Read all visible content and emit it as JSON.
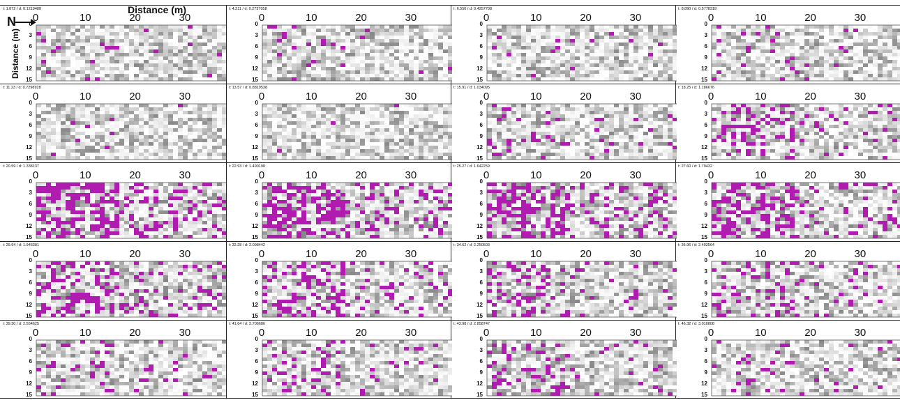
{
  "figure": {
    "x_axis_title": "Distance (m)",
    "y_axis_title": "Distance (m)",
    "north_label": "N",
    "x_ticks": [
      "0",
      "10",
      "20",
      "30"
    ],
    "y_ticks": [
      "0",
      "3",
      "6",
      "9",
      "12",
      "15"
    ],
    "colors": {
      "grey_scale": "#808080",
      "anomaly": "#b01cb0",
      "background": "#ffffff"
    }
  },
  "chart_data": {
    "type": "heatmap",
    "title": "",
    "xlabel": "Distance (m)",
    "ylabel": "Distance (m)",
    "xlim": [
      0,
      39
    ],
    "ylim": [
      0,
      15
    ],
    "grid": false,
    "panel_count": 20,
    "panels": [
      {
        "label": "t: 1.872 / d: 0.1219488",
        "anomaly_level": 0.02
      },
      {
        "label": "t: 4.211 / d: 0.2737058",
        "anomaly_level": 0.02
      },
      {
        "label": "t: 6.550 / d: 0.4257708",
        "anomaly_level": 0.02
      },
      {
        "label": "t: 8.890 / d: 0.5778318",
        "anomaly_level": 0.03
      },
      {
        "label": "t: 11.23 / d: 0.7298928",
        "anomaly_level": 0.01
      },
      {
        "label": "t: 13.57 / d: 0.8819538",
        "anomaly_level": 0.01
      },
      {
        "label": "t: 15.91 / d: 1.034095",
        "anomaly_level": 0.06
      },
      {
        "label": "t: 18.25 / d: 1.186676",
        "anomaly_level": 0.14
      },
      {
        "label": "t: 20.59 / d: 1.338137",
        "anomaly_level": 0.28
      },
      {
        "label": "t: 22.93 / d: 1.490198",
        "anomaly_level": 0.26
      },
      {
        "label": "t: 25.27 / d: 1.642259",
        "anomaly_level": 0.24
      },
      {
        "label": "t: 27.60 / d: 1.79432",
        "anomaly_level": 0.22
      },
      {
        "label": "t: 29.94 / d: 1.946381",
        "anomaly_level": 0.18
      },
      {
        "label": "t: 32.28 / d: 2.098442",
        "anomaly_level": 0.16
      },
      {
        "label": "t: 34.62 / d: 2.250503",
        "anomaly_level": 0.13
      },
      {
        "label": "t: 36.96 / d: 2.402564",
        "anomaly_level": 0.09
      },
      {
        "label": "t: 39.30 / d: 2.554625",
        "anomaly_level": 0.07
      },
      {
        "label": "t: 41.64 / d: 2.706686",
        "anomaly_level": 0.07
      },
      {
        "label": "t: 43.98 / d: 2.858747",
        "anomaly_level": 0.06
      },
      {
        "label": "t: 46.32 / d: 3.010808",
        "anomaly_level": 0.05
      }
    ]
  }
}
